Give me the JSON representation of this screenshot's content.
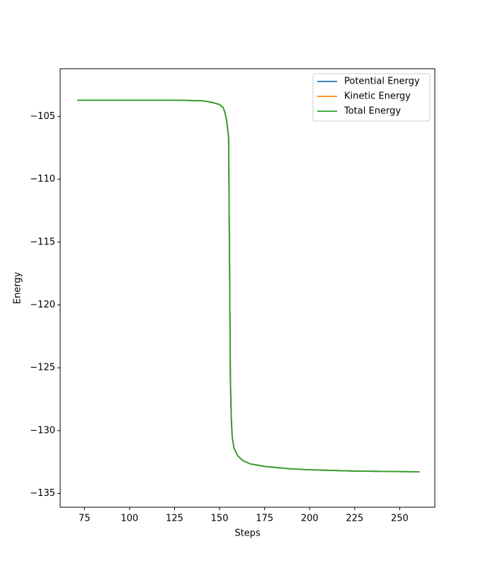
{
  "chart_data": {
    "type": "line",
    "xlabel": "Steps",
    "ylabel": "Energy",
    "x": [
      71,
      100,
      125,
      140,
      145,
      150,
      152,
      153,
      154,
      155,
      155.5,
      156,
      156.5,
      157,
      158,
      160,
      163,
      167,
      175,
      190,
      200,
      225,
      261
    ],
    "series": [
      {
        "name": "Potential Energy",
        "color": "#1f77b4",
        "values": [
          -103.7,
          -103.7,
          -103.7,
          -103.75,
          -103.85,
          -104.05,
          -104.3,
          -104.7,
          -105.4,
          -106.7,
          -116,
          -126,
          -129,
          -130.5,
          -131.4,
          -132.0,
          -132.4,
          -132.65,
          -132.85,
          -133.05,
          -133.12,
          -133.22,
          -133.28
        ]
      },
      {
        "name": "Kinetic Energy",
        "color": "#ff7f0e",
        "values": [
          -103.7,
          -103.7,
          -103.7,
          -103.75,
          -103.85,
          -104.05,
          -104.3,
          -104.7,
          -105.4,
          -106.7,
          -116,
          -126,
          -129,
          -130.5,
          -131.4,
          -132.0,
          -132.4,
          -132.65,
          -132.85,
          -133.05,
          -133.12,
          -133.22,
          -133.28
        ]
      },
      {
        "name": "Total Energy",
        "color": "#2ca02c",
        "values": [
          -103.7,
          -103.7,
          -103.7,
          -103.75,
          -103.85,
          -104.05,
          -104.3,
          -104.7,
          -105.4,
          -106.7,
          -116,
          -126,
          -129,
          -130.5,
          -131.4,
          -132.0,
          -132.4,
          -132.65,
          -132.85,
          -133.05,
          -133.12,
          -133.22,
          -133.28
        ]
      }
    ],
    "xlim": [
      61.5,
      269.5
    ],
    "xticks": [
      75,
      100,
      125,
      150,
      175,
      200,
      225,
      250
    ],
    "ylim": [
      -136.1,
      -101.2
    ],
    "yticks": [
      -135,
      -130,
      -125,
      -120,
      -115,
      -110,
      -105
    ],
    "legend": "upper right",
    "grid": false
  }
}
